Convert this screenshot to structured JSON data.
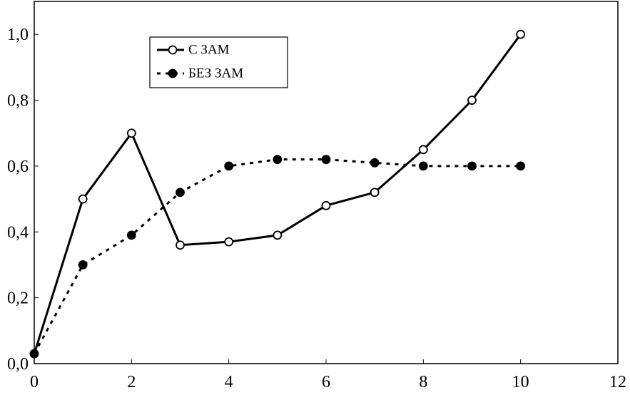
{
  "chart_data": {
    "type": "line",
    "x": [
      0,
      1,
      2,
      3,
      4,
      5,
      6,
      7,
      8,
      9,
      10
    ],
    "series": [
      {
        "name": "С ЗАМ",
        "color": "#000000",
        "style": "solid",
        "marker": "open",
        "values": [
          0.03,
          0.5,
          0.7,
          0.36,
          0.37,
          0.39,
          0.48,
          0.52,
          0.65,
          0.8,
          1.0
        ]
      },
      {
        "name": "БЕЗ ЗАМ",
        "color": "#000000",
        "style": "dotted",
        "marker": "filled",
        "values": [
          0.03,
          0.3,
          0.39,
          0.52,
          0.6,
          0.62,
          0.62,
          0.61,
          0.6,
          0.6,
          0.6
        ]
      }
    ],
    "xlim": [
      0,
      12
    ],
    "xticks": [
      0,
      2,
      4,
      6,
      8,
      10,
      12
    ],
    "ylim": [
      0,
      1.1
    ],
    "yticks": [
      {
        "value": 0,
        "label": "0,0"
      },
      {
        "value": 0.2,
        "label": "0,2"
      },
      {
        "value": 0.4,
        "label": "0,4"
      },
      {
        "value": 0.6,
        "label": "0,6"
      },
      {
        "value": 0.8,
        "label": "0,8"
      },
      {
        "value": 1.0,
        "label": "1,0"
      }
    ],
    "grid": false,
    "legend": "upper left"
  }
}
